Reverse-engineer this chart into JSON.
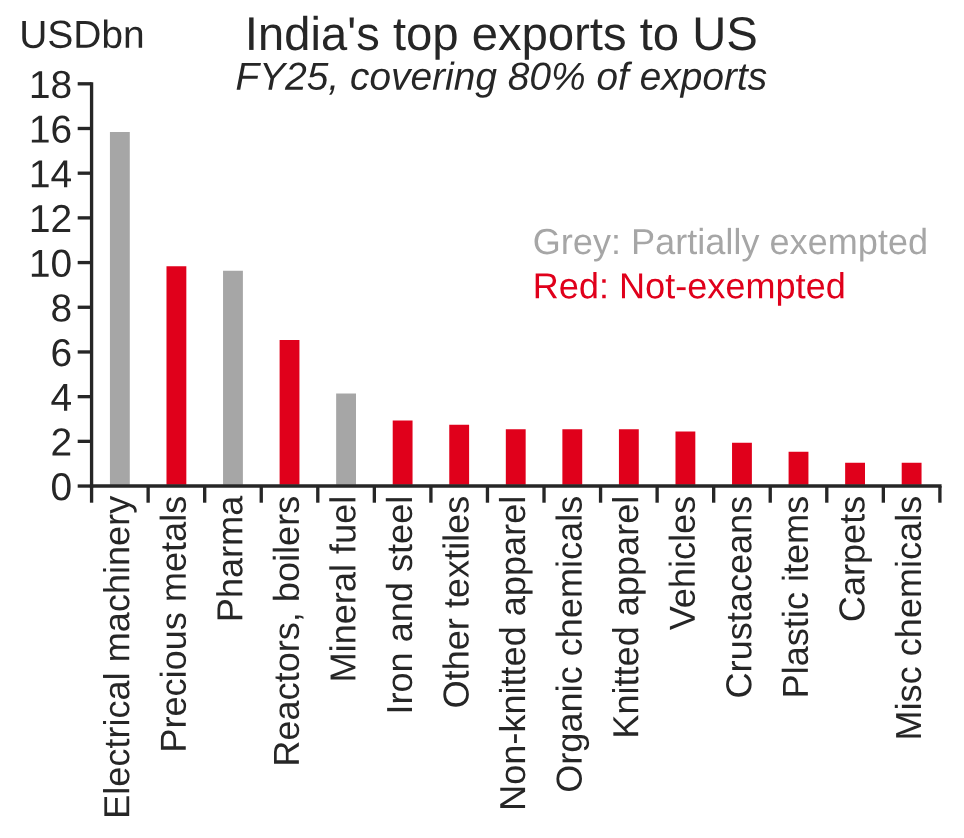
{
  "chart_data": {
    "type": "bar",
    "title": "India's top exports to US",
    "subtitle": "FY25, covering 80% of exports",
    "ylabel": "USDbn",
    "categories": [
      "Electrical machinery",
      "Precious metals",
      "Pharma",
      "Reactors, boilers",
      "Mineral fuel",
      "Iron and steel",
      "Other textiles",
      "Non-knitted apparel",
      "Organic chemicals",
      "Knitted apparel",
      "Vehicles",
      "Crustaceans",
      "Plastic items",
      "Carpets",
      "Misc chemicals"
    ],
    "values": [
      15.9,
      9.9,
      9.7,
      6.6,
      4.2,
      3.0,
      2.8,
      2.6,
      2.6,
      2.6,
      2.5,
      2.0,
      1.6,
      1.1,
      1.1
    ],
    "colors": [
      "#a6a6a6",
      "#e0001b",
      "#a6a6a6",
      "#e0001b",
      "#a6a6a6",
      "#e0001b",
      "#e0001b",
      "#e0001b",
      "#e0001b",
      "#e0001b",
      "#e0001b",
      "#e0001b",
      "#e0001b",
      "#e0001b",
      "#e0001b"
    ],
    "annotations": [
      "Grey: Partially exempted",
      "Red: Not-exempted"
    ],
    "ylim": [
      0,
      18
    ],
    "yticks": [
      0,
      2,
      4,
      6,
      8,
      10,
      12,
      14,
      16,
      18
    ],
    "grid": false,
    "legend": false
  }
}
